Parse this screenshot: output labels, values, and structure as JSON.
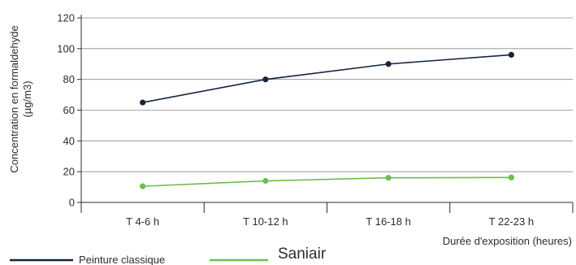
{
  "chart_data": {
    "type": "line",
    "title": "",
    "xlabel": "Durée d'exposition (heures)",
    "ylabel_line1": "Concentration en formaldehyde",
    "ylabel_line2": "(µg/m3)",
    "categories": [
      "T 4-6 h",
      "T 10-12 h",
      "T 16-18 h",
      "T 22-23 h"
    ],
    "ylim": [
      0,
      120
    ],
    "yticks": [
      0,
      20,
      40,
      60,
      80,
      100,
      120
    ],
    "y_tick_labels": [
      "0",
      "20",
      "40",
      "60",
      "80",
      "100",
      "120"
    ],
    "grid": "horizontal",
    "legend_position": "bottom-left",
    "series": [
      {
        "name": "Peinture classique",
        "color": "#15253f",
        "values": [
          65,
          80,
          90,
          96
        ]
      },
      {
        "name": "Saniair",
        "color": "#6cbf4a",
        "values": [
          10.5,
          14,
          16,
          16.2
        ]
      }
    ]
  }
}
